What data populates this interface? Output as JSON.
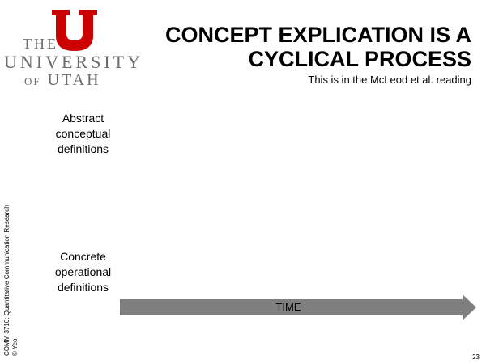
{
  "logo": {
    "line1": "THE",
    "line2": "UNIVERSITY",
    "line3_small": "OF",
    "line3_main": "UTAH",
    "brand_color": "#cc0000",
    "text_color": "#6b6b6b"
  },
  "slide": {
    "title_line1": "CONCEPT EXPLICATION IS A",
    "title_line2": "CYCLICAL PROCESS",
    "subtitle": "This is in the McLeod et al. reading",
    "abstract_line1": "Abstract",
    "abstract_line2": "conceptual",
    "abstract_line3": "definitions",
    "concrete_line1": "Concrete",
    "concrete_line2": "operational",
    "concrete_line3": "definitions",
    "arrow_label": "TIME",
    "arrow_color": "#7f7f7f",
    "page_number": "23"
  },
  "footer": {
    "course": "COMM 3710: Quantitative Communication Research",
    "author": "© Yeo"
  }
}
